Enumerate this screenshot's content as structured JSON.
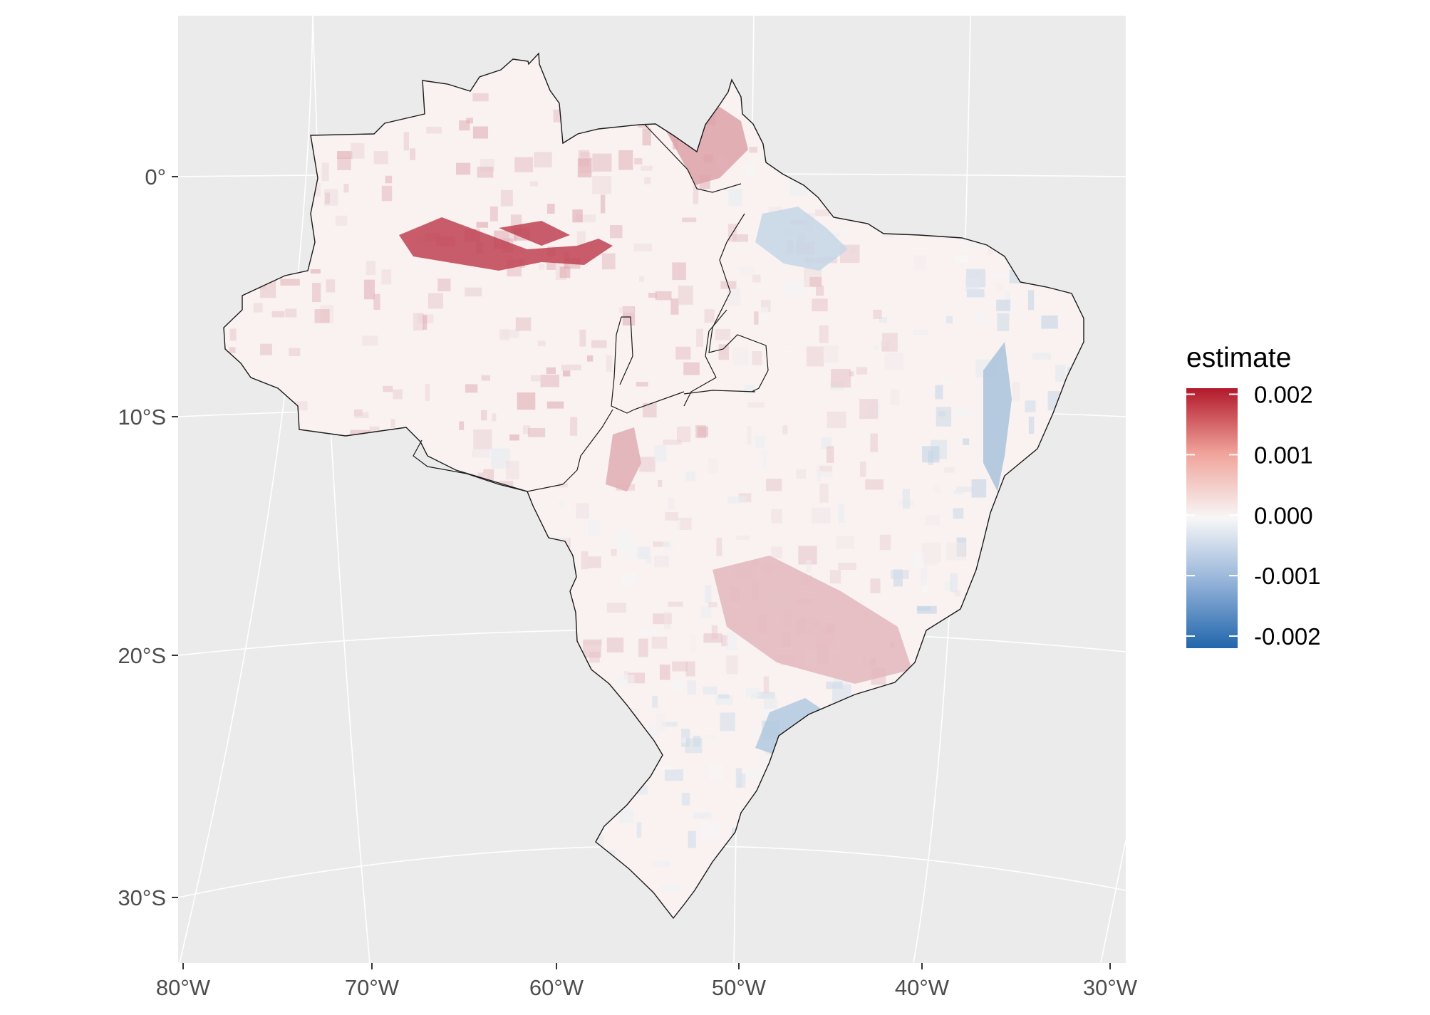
{
  "map": {
    "type": "choropleth",
    "region": "Brazil",
    "panel_background": "#ebebeb",
    "grid_color": "#ffffff",
    "grid": true,
    "projection": "curved graticule (conic-like)",
    "y_axis": {
      "ticks": [
        {
          "value": 0,
          "label": "0°"
        },
        {
          "value": -10,
          "label": "10°S"
        },
        {
          "value": -20,
          "label": "20°S"
        },
        {
          "value": -30,
          "label": "30°S"
        }
      ]
    },
    "x_axis": {
      "ticks": [
        {
          "value": -80,
          "label": "80°W"
        },
        {
          "value": -70,
          "label": "70°W"
        },
        {
          "value": -60,
          "label": "60°W"
        },
        {
          "value": -50,
          "label": "50°W"
        },
        {
          "value": -40,
          "label": "40°W"
        },
        {
          "value": -30,
          "label": "30°W"
        }
      ]
    },
    "legend": {
      "title": "estimate",
      "position": "right",
      "breaks": [
        {
          "value": 0.002,
          "label": "0.002"
        },
        {
          "value": 0.001,
          "label": "0.001"
        },
        {
          "value": 0.0,
          "label": "0.000"
        },
        {
          "value": -0.001,
          "label": "-0.001"
        },
        {
          "value": -0.002,
          "label": "-0.002"
        }
      ],
      "range": [
        -0.0022,
        0.0021
      ],
      "colors": {
        "low": "#2166ac",
        "mid": "#f7f7f7",
        "high": "#b2182b"
      }
    },
    "hotspots": [
      {
        "name": "amazon-river-corridor",
        "estimate": 0.0017
      },
      {
        "name": "amapa-coast",
        "estimate": 0.0008
      },
      {
        "name": "maranhao-west",
        "estimate": -0.0005
      },
      {
        "name": "mato-grosso-north",
        "estimate": 0.0007
      },
      {
        "name": "minas-gerais-south",
        "estimate": 0.0006
      },
      {
        "name": "sao-paulo-coast",
        "estimate": -0.0007
      },
      {
        "name": "northeast-coast",
        "estimate": -0.0008
      }
    ]
  }
}
